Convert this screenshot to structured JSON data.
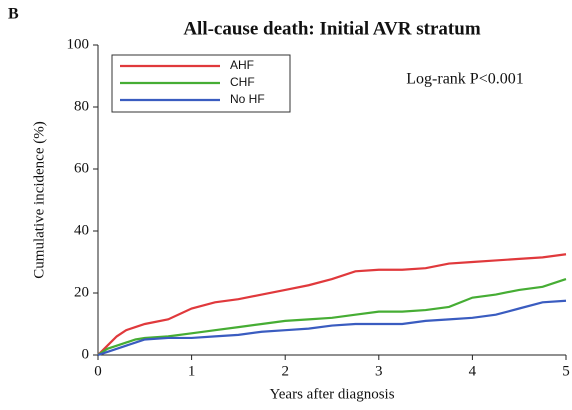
{
  "panel_label": "B",
  "chart_data": {
    "type": "line",
    "title": "All-cause death: Initial AVR stratum",
    "annotation": "Log-rank P<0.001",
    "x_label": "Years after diagnosis",
    "y_label": "Cumulative incidence (%)",
    "x": [
      0,
      0.1,
      0.2,
      0.3,
      0.4,
      0.5,
      0.75,
      1,
      1.25,
      1.5,
      1.75,
      2,
      2.25,
      2.5,
      2.75,
      3,
      3.25,
      3.5,
      3.75,
      4,
      4.25,
      4.5,
      4.75,
      5
    ],
    "series": [
      {
        "name": "AHF",
        "color": "#e0393c",
        "values": [
          0,
          3,
          6,
          8,
          9,
          10,
          11.5,
          15,
          17,
          18,
          19.5,
          21,
          22.5,
          24.5,
          27,
          27.5,
          27.5,
          28,
          29.5,
          30,
          30.5,
          31,
          31.5,
          32.5
        ]
      },
      {
        "name": "CHF",
        "color": "#46ad34",
        "values": [
          0,
          2,
          3,
          4,
          5,
          5.5,
          6,
          7,
          8,
          9,
          10,
          11,
          11.5,
          12,
          13,
          14,
          14,
          14.5,
          15.5,
          18.5,
          19.5,
          21,
          22,
          24.5
        ]
      },
      {
        "name": "No HF",
        "color": "#3a5cc0",
        "values": [
          0,
          1,
          2,
          3,
          4,
          5,
          5.5,
          5.5,
          6,
          6.5,
          7.5,
          8,
          8.5,
          9.5,
          10,
          10,
          10,
          11,
          11.5,
          12,
          13,
          15,
          17,
          17.5
        ]
      }
    ],
    "xlim": [
      0,
      5
    ],
    "xticks": [
      0,
      1,
      2,
      3,
      4,
      5
    ],
    "ylim": [
      0,
      100
    ],
    "yticks": [
      0,
      20,
      40,
      60,
      80,
      100
    ],
    "legend": "upper left"
  }
}
